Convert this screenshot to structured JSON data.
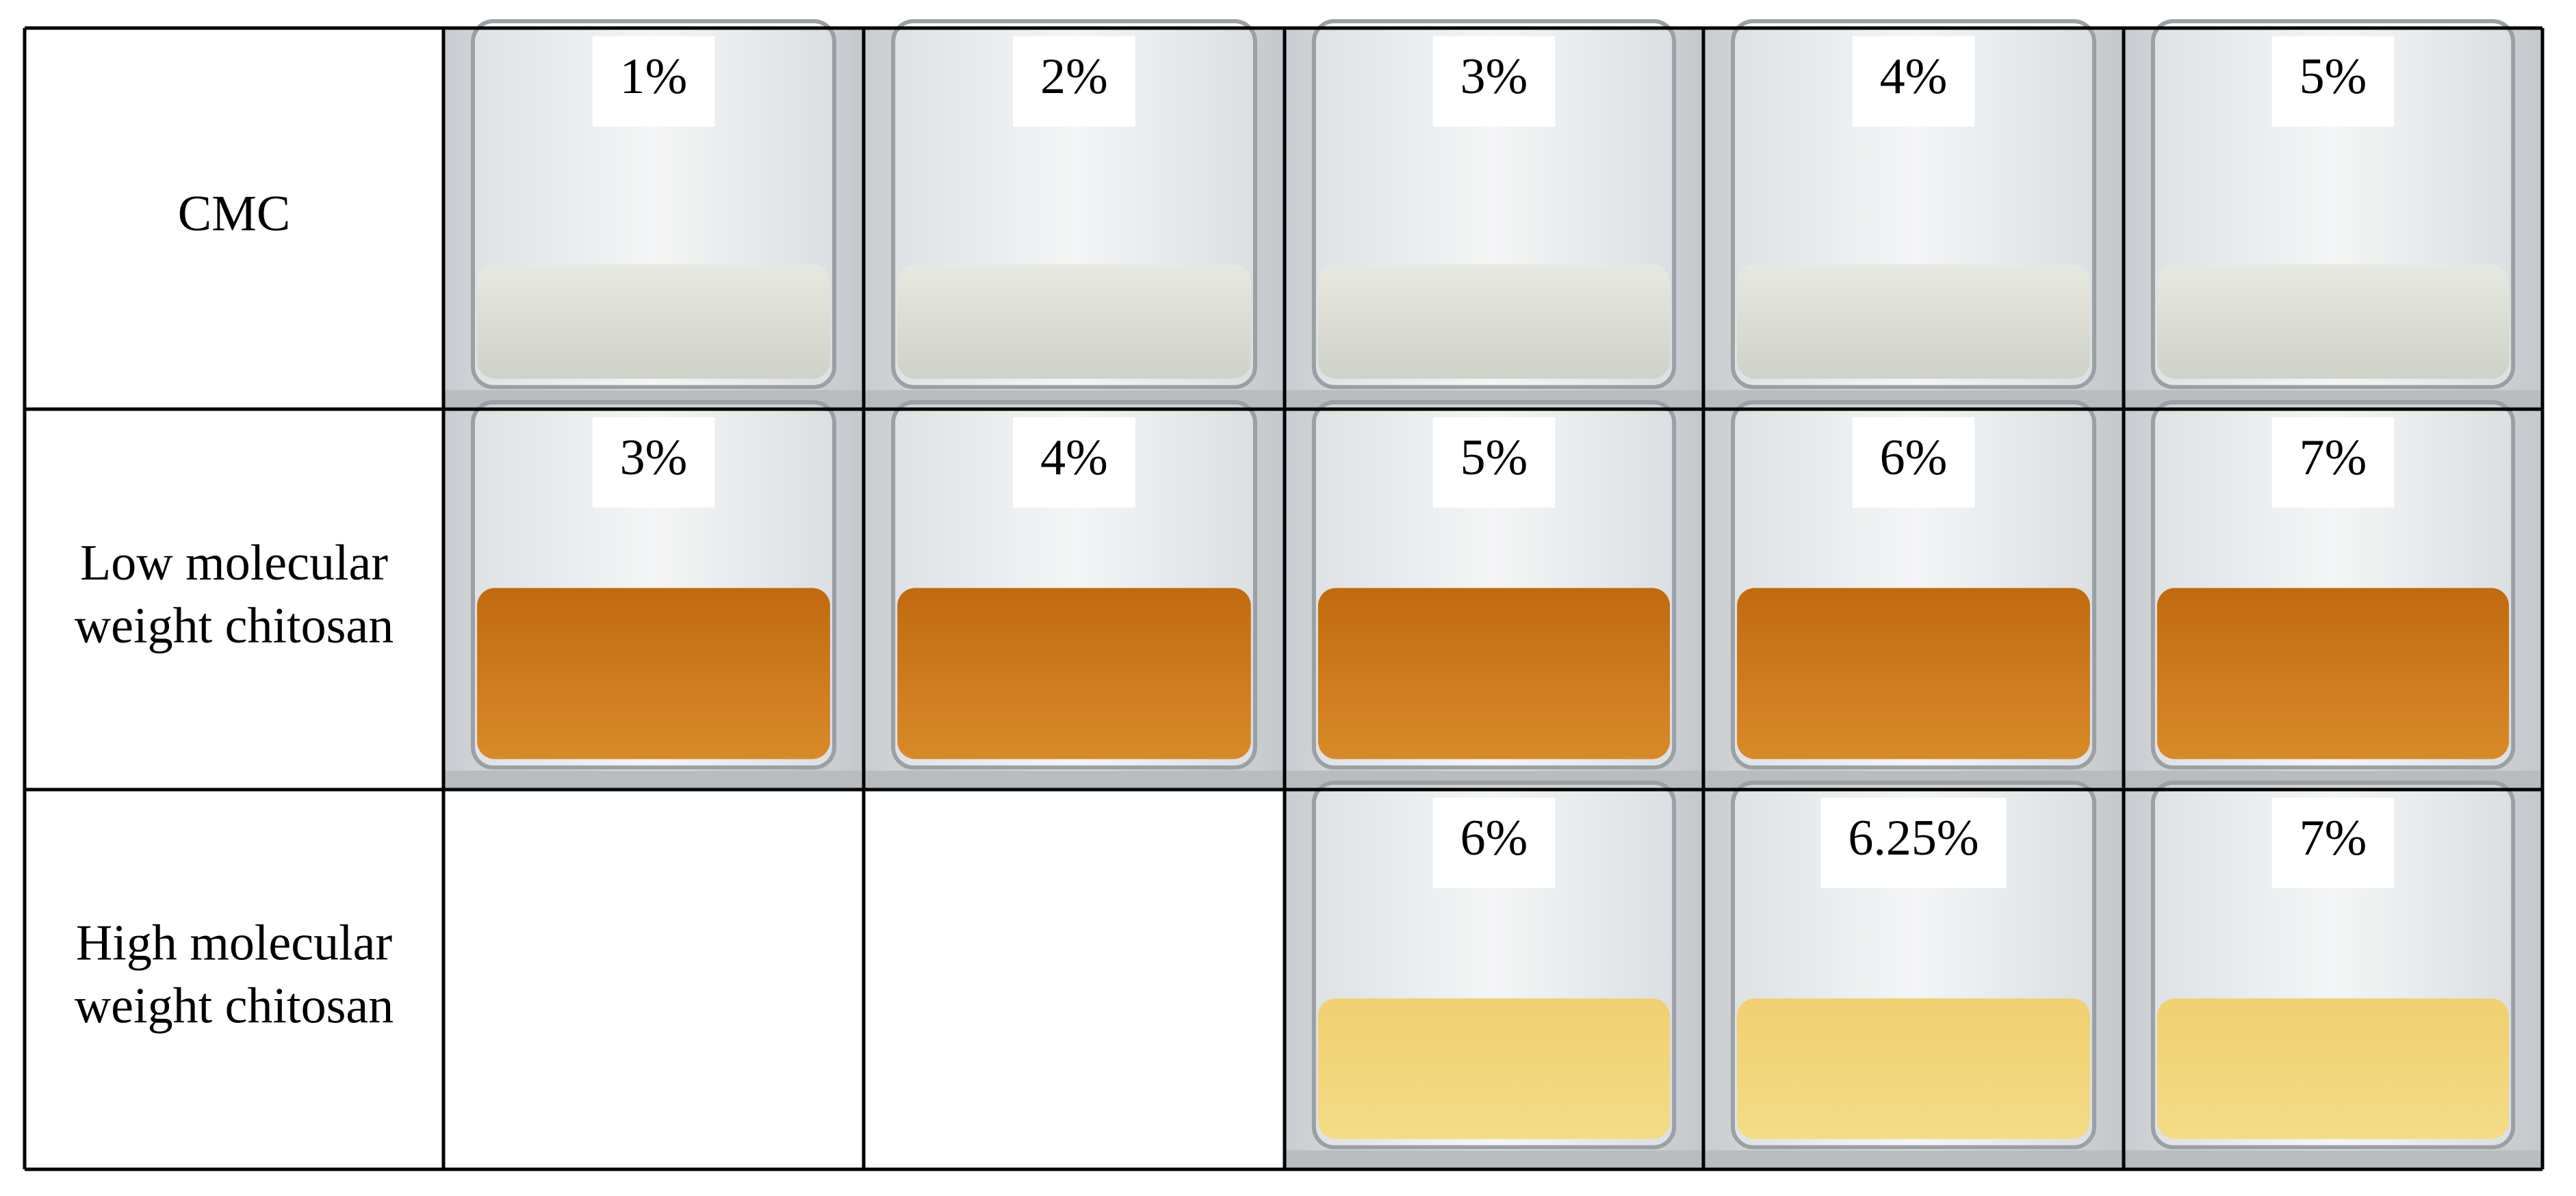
{
  "table": {
    "rows": [
      {
        "label": [
          "CMC"
        ],
        "cells": [
          "1%",
          "2%",
          "3%",
          "4%",
          "5%"
        ]
      },
      {
        "label": [
          "Low molecular",
          "weight chitosan"
        ],
        "cells": [
          "3%",
          "4%",
          "5%",
          "6%",
          "7%"
        ]
      },
      {
        "label": [
          "High molecular",
          "weight chitosan"
        ],
        "cells": [
          "6%",
          "6.25%",
          "7%"
        ]
      }
    ]
  }
}
